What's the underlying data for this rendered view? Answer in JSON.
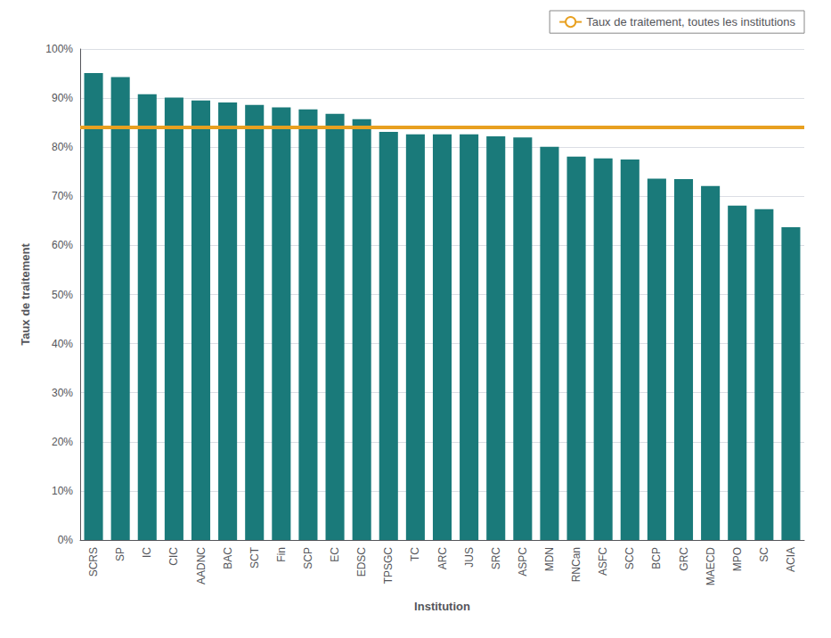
{
  "chart_data": {
    "type": "bar",
    "xlabel": "Institution",
    "ylabel": "Taux de traitement",
    "categories": [
      "SCRS",
      "SP",
      "IC",
      "CIC",
      "AADNC",
      "BAC",
      "SCT",
      "Fin",
      "SCP",
      "EC",
      "EDSC",
      "TPSGC",
      "TC",
      "ARC",
      "JUS",
      "SRC",
      "ASPC",
      "MDN",
      "RNCan",
      "ASFC",
      "SCC",
      "BCP",
      "GRC",
      "MAECD",
      "MPO",
      "SC",
      "ACIA"
    ],
    "values": [
      0.951,
      0.943,
      0.908,
      0.901,
      0.895,
      0.891,
      0.886,
      0.881,
      0.877,
      0.868,
      0.857,
      0.831,
      0.826,
      0.826,
      0.826,
      0.822,
      0.82,
      0.801,
      0.781,
      0.777,
      0.775,
      0.736,
      0.735,
      0.721,
      0.681,
      0.674,
      0.637
    ],
    "color": "#1a7a7a",
    "reference_line": {
      "name": "Taux de traitement, toutes les institutions",
      "value": 0.843,
      "color": "#e8a020"
    },
    "ylim": [
      0,
      1.0
    ],
    "yticks": [
      {
        "value": 0,
        "label": "0%"
      },
      {
        "value": 0.1,
        "label": "10%"
      },
      {
        "value": 0.2,
        "label": "20%"
      },
      {
        "value": 0.3,
        "label": "30%"
      },
      {
        "value": 0.4,
        "label": "40%"
      },
      {
        "value": 0.5,
        "label": "50%"
      },
      {
        "value": 0.6,
        "label": "60%"
      },
      {
        "value": 0.7,
        "label": "70%"
      },
      {
        "value": 0.8,
        "label": "80%"
      },
      {
        "value": 0.9,
        "label": "90%"
      },
      {
        "value": 1.0,
        "label": "100%"
      }
    ],
    "grid": true,
    "legend": "upper right"
  }
}
